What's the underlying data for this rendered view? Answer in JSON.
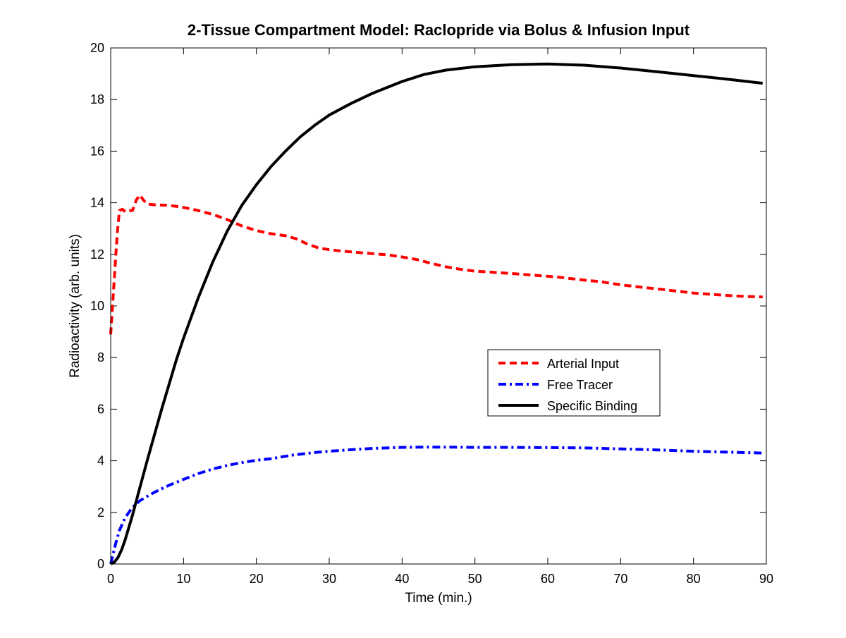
{
  "chart_data": {
    "type": "line",
    "title": "2-Tissue Compartment Model: Raclopride via Bolus & Infusion Input",
    "xlabel": "Time (min.)",
    "ylabel": "Radioactivity (arb. units)",
    "xlim": [
      0,
      90
    ],
    "ylim": [
      0,
      20
    ],
    "xticks": [
      0,
      10,
      20,
      30,
      40,
      50,
      60,
      70,
      80,
      90
    ],
    "yticks": [
      0,
      2,
      4,
      6,
      8,
      10,
      12,
      14,
      16,
      18,
      20
    ],
    "grid": false,
    "legend_position": "center-right",
    "series": [
      {
        "name": "Arterial Input",
        "color": "#ff0000",
        "style": "dashed",
        "points": [
          [
            0,
            8.9
          ],
          [
            0.3,
            10.2
          ],
          [
            0.6,
            11.5
          ],
          [
            0.9,
            12.8
          ],
          [
            1.2,
            13.7
          ],
          [
            1.6,
            13.75
          ],
          [
            2,
            13.65
          ],
          [
            2.5,
            13.7
          ],
          [
            3,
            13.7
          ],
          [
            3.5,
            14.1
          ],
          [
            4,
            14.3
          ],
          [
            4.5,
            14.1
          ],
          [
            5,
            13.95
          ],
          [
            6,
            13.92
          ],
          [
            8,
            13.9
          ],
          [
            10,
            13.82
          ],
          [
            12,
            13.7
          ],
          [
            14,
            13.55
          ],
          [
            16,
            13.35
          ],
          [
            18,
            13.1
          ],
          [
            20,
            12.92
          ],
          [
            22,
            12.8
          ],
          [
            24,
            12.72
          ],
          [
            25.5,
            12.6
          ],
          [
            27,
            12.4
          ],
          [
            28.5,
            12.25
          ],
          [
            30,
            12.18
          ],
          [
            32,
            12.12
          ],
          [
            35,
            12.05
          ],
          [
            38,
            11.98
          ],
          [
            40,
            11.9
          ],
          [
            42,
            11.8
          ],
          [
            44,
            11.65
          ],
          [
            46,
            11.52
          ],
          [
            48,
            11.42
          ],
          [
            50,
            11.35
          ],
          [
            55,
            11.26
          ],
          [
            60,
            11.15
          ],
          [
            62,
            11.1
          ],
          [
            65,
            11.0
          ],
          [
            67,
            10.95
          ],
          [
            70,
            10.82
          ],
          [
            73,
            10.72
          ],
          [
            76,
            10.63
          ],
          [
            80,
            10.5
          ],
          [
            84,
            10.42
          ],
          [
            87,
            10.37
          ],
          [
            89.5,
            10.35
          ]
        ]
      },
      {
        "name": "Free Tracer",
        "color": "#0000ff",
        "style": "dashdot",
        "points": [
          [
            0,
            0
          ],
          [
            0.3,
            0.35
          ],
          [
            0.7,
            0.8
          ],
          [
            1.2,
            1.3
          ],
          [
            2,
            1.8
          ],
          [
            3,
            2.2
          ],
          [
            4,
            2.45
          ],
          [
            5,
            2.62
          ],
          [
            6,
            2.78
          ],
          [
            8,
            3.05
          ],
          [
            10,
            3.28
          ],
          [
            12,
            3.5
          ],
          [
            14,
            3.68
          ],
          [
            16,
            3.82
          ],
          [
            18,
            3.93
          ],
          [
            20,
            4.02
          ],
          [
            22,
            4.08
          ],
          [
            25,
            4.22
          ],
          [
            28,
            4.32
          ],
          [
            30,
            4.37
          ],
          [
            33,
            4.43
          ],
          [
            36,
            4.48
          ],
          [
            40,
            4.52
          ],
          [
            43,
            4.53
          ],
          [
            46,
            4.53
          ],
          [
            50,
            4.52
          ],
          [
            55,
            4.52
          ],
          [
            60,
            4.51
          ],
          [
            65,
            4.5
          ],
          [
            70,
            4.46
          ],
          [
            75,
            4.42
          ],
          [
            80,
            4.37
          ],
          [
            85,
            4.33
          ],
          [
            89.5,
            4.3
          ]
        ]
      },
      {
        "name": "Specific Binding",
        "color": "#000000",
        "style": "solid",
        "points": [
          [
            0,
            0
          ],
          [
            0.5,
            0.07
          ],
          [
            1,
            0.25
          ],
          [
            1.5,
            0.55
          ],
          [
            2,
            0.95
          ],
          [
            3,
            1.9
          ],
          [
            4,
            2.95
          ],
          [
            5,
            4.0
          ],
          [
            6,
            5.0
          ],
          [
            7,
            6.0
          ],
          [
            8,
            6.95
          ],
          [
            9,
            7.9
          ],
          [
            10,
            8.75
          ],
          [
            12,
            10.3
          ],
          [
            14,
            11.7
          ],
          [
            16,
            12.9
          ],
          [
            18,
            13.9
          ],
          [
            20,
            14.7
          ],
          [
            22,
            15.4
          ],
          [
            24,
            16.0
          ],
          [
            26,
            16.55
          ],
          [
            28,
            17.0
          ],
          [
            30,
            17.4
          ],
          [
            33,
            17.85
          ],
          [
            36,
            18.25
          ],
          [
            40,
            18.7
          ],
          [
            43,
            18.97
          ],
          [
            46,
            19.14
          ],
          [
            50,
            19.27
          ],
          [
            55,
            19.35
          ],
          [
            60,
            19.38
          ],
          [
            65,
            19.33
          ],
          [
            70,
            19.22
          ],
          [
            75,
            19.08
          ],
          [
            80,
            18.93
          ],
          [
            85,
            18.78
          ],
          [
            89.5,
            18.63
          ]
        ]
      }
    ]
  }
}
